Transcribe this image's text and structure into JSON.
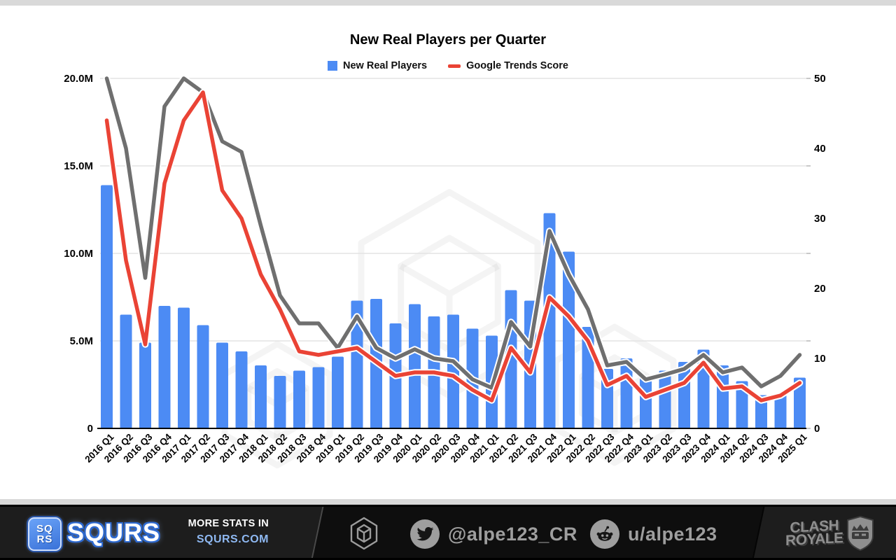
{
  "chart": {
    "title": "New Real Players per Quarter",
    "legend": [
      {
        "label": "New Real Players",
        "color": "#4c8bf4",
        "shape": "square"
      },
      {
        "label": "Google Trends Score",
        "color": "#ea4335",
        "shape": "line"
      }
    ]
  },
  "chart_data": {
    "type": "bar+line combo",
    "title": "New Real Players per Quarter",
    "categories": [
      "2016 Q1",
      "2016 Q2",
      "2016 Q3",
      "2016 Q4",
      "2017 Q1",
      "2017 Q2",
      "2017 Q3",
      "2017 Q4",
      "2018 Q1",
      "2018 Q2",
      "2018 Q3",
      "2018 Q4",
      "2019 Q1",
      "2019 Q2",
      "2019 Q3",
      "2019 Q4",
      "2020 Q1",
      "2020 Q2",
      "2020 Q3",
      "2020 Q4",
      "2021 Q1",
      "2021 Q2",
      "2021 Q3",
      "2021 Q4",
      "2022 Q1",
      "2022 Q2",
      "2022 Q3",
      "2022 Q4",
      "2023 Q1",
      "2023 Q2",
      "2023 Q3",
      "2023 Q4",
      "2024 Q1",
      "2024 Q2",
      "2024 Q3",
      "2024 Q4",
      "2025 Q1"
    ],
    "series": [
      {
        "name": "New Real Players",
        "type": "bar",
        "axis": "left",
        "unit": "millions",
        "color": "#4c8bf4",
        "values": [
          13.9,
          6.5,
          4.9,
          7.0,
          6.9,
          5.9,
          4.9,
          4.4,
          3.6,
          3.0,
          3.3,
          3.5,
          4.1,
          7.3,
          7.4,
          6.0,
          7.1,
          6.4,
          6.5,
          5.7,
          5.3,
          7.9,
          7.3,
          12.3,
          10.1,
          5.8,
          3.4,
          4.0,
          3.0,
          3.3,
          3.8,
          4.5,
          3.6,
          2.7,
          1.9,
          2.0,
          2.9
        ]
      },
      {
        "name": "Google Trends Score",
        "type": "line",
        "axis": "right",
        "color": "#ea4335",
        "values": [
          44,
          24,
          12,
          35,
          44,
          48,
          34,
          30,
          22,
          17,
          11,
          10.5,
          11,
          11.5,
          9.5,
          7.5,
          8,
          8,
          7.5,
          5.5,
          4,
          11.5,
          8,
          18.7,
          16,
          12.5,
          6.2,
          7.5,
          4.5,
          5.5,
          6.5,
          9.4,
          5.7,
          6,
          4,
          4.7,
          6.5
        ]
      },
      {
        "name": "unlabeled gray trend line",
        "type": "line",
        "axis": "right",
        "color": "#6f6f6f",
        "values": [
          50,
          40,
          21.5,
          46,
          50,
          48,
          41,
          39.5,
          29,
          19,
          15,
          15,
          11.5,
          16,
          11.5,
          10,
          11.3,
          10,
          9.6,
          7,
          5.8,
          15.2,
          11.7,
          28.2,
          22,
          17,
          9,
          9.5,
          7,
          7.7,
          8.5,
          10.5,
          8,
          8.7,
          6,
          7.5,
          10.5
        ]
      }
    ],
    "y_left": {
      "ticks": [
        "0",
        "5.0M",
        "10.0M",
        "15.0M",
        "20.0M"
      ],
      "min": 0,
      "max": 20,
      "unit": "millions"
    },
    "y_right": {
      "ticks": [
        "0",
        "10",
        "20",
        "30",
        "40",
        "50"
      ],
      "min": 0,
      "max": 50
    },
    "grid": true,
    "legend_position": "top",
    "styles": {
      "gridline": "#e3e3e3",
      "axis_line": "#000",
      "tick_text": "#000",
      "halo": "#ffffff",
      "watermark": "rgba(0,0,0,0.045)"
    }
  },
  "footer": {
    "squrs_badge": {
      "line1": "SQ",
      "line2": "RS"
    },
    "brand": "SQURS",
    "more_stats": {
      "line1": "MORE STATS IN",
      "line2": "SQURS.COM"
    },
    "twitter_handle": "@alpe123_CR",
    "reddit_handle": "u/alpe123",
    "clash_royale": {
      "line1": "CLASH",
      "line2": "ROYALE"
    }
  },
  "icons": {
    "center_hex": "squrs-hex-logo",
    "twitter": "twitter-bird-icon",
    "reddit": "reddit-alien-icon",
    "shield": "clash-royale-shield-icon"
  }
}
